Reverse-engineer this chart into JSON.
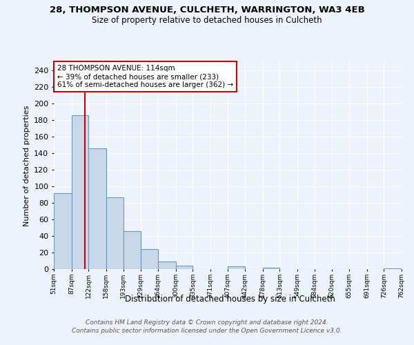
{
  "title1": "28, THOMPSON AVENUE, CULCHETH, WARRINGTON, WA3 4EB",
  "title2": "Size of property relative to detached houses in Culcheth",
  "xlabel": "Distribution of detached houses by size in Culcheth",
  "ylabel": "Number of detached properties",
  "bar_edges": [
    51,
    87,
    122,
    158,
    193,
    229,
    264,
    300,
    335,
    371,
    407,
    442,
    478,
    513,
    549,
    584,
    620,
    655,
    691,
    726,
    762
  ],
  "bar_heights": [
    92,
    186,
    146,
    87,
    46,
    24,
    9,
    4,
    0,
    0,
    3,
    0,
    2,
    0,
    0,
    0,
    0,
    0,
    0,
    1
  ],
  "bar_color": "#c8d8e8",
  "bar_edge_color": "#6699bb",
  "vline_x": 114,
  "vline_color": "#cc0000",
  "ylim": [
    0,
    250
  ],
  "yticks": [
    0,
    20,
    40,
    60,
    80,
    100,
    120,
    140,
    160,
    180,
    200,
    220,
    240
  ],
  "annotation_title": "28 THOMPSON AVENUE: 114sqm",
  "annotation_line1": "← 39% of detached houses are smaller (233)",
  "annotation_line2": "61% of semi-detached houses are larger (362) →",
  "annotation_box_color": "#ffffff",
  "annotation_box_edge": "#cc0000",
  "footer1": "Contains HM Land Registry data © Crown copyright and database right 2024.",
  "footer2": "Contains public sector information licensed under the Open Government Licence v3.0.",
  "bg_color": "#eef2fb",
  "grid_color": "#ffffff",
  "tick_labels": [
    "51sqm",
    "87sqm",
    "122sqm",
    "158sqm",
    "193sqm",
    "229sqm",
    "264sqm",
    "300sqm",
    "335sqm",
    "371sqm",
    "407sqm",
    "442sqm",
    "478sqm",
    "513sqm",
    "549sqm",
    "584sqm",
    "620sqm",
    "655sqm",
    "691sqm",
    "726sqm",
    "762sqm"
  ],
  "title1_fontsize": 9.5,
  "title2_fontsize": 8.5
}
